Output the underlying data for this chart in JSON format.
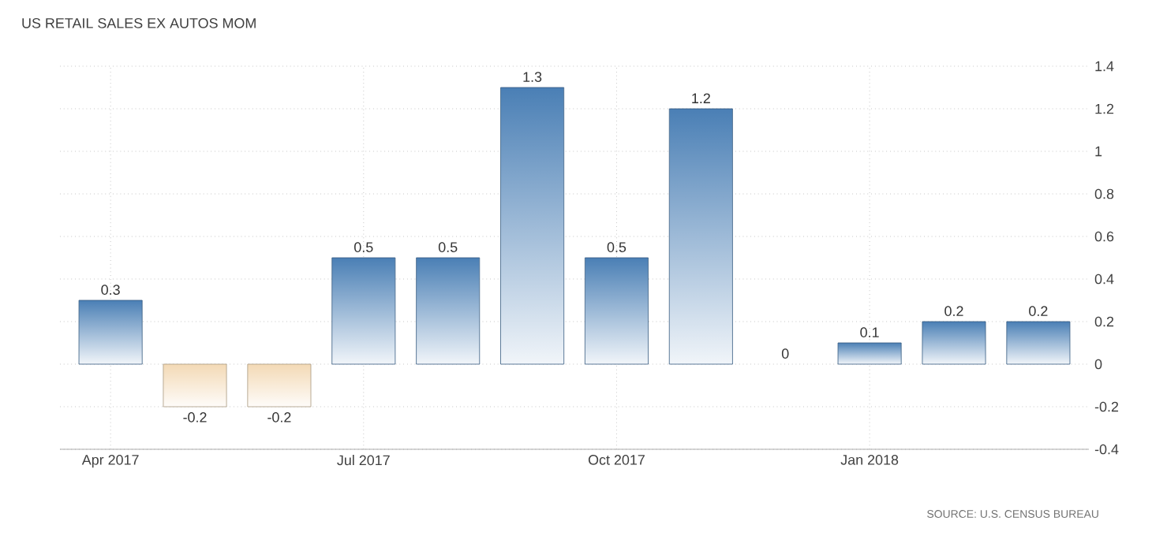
{
  "chart_data": {
    "type": "bar",
    "title": "US RETAIL SALES EX AUTOS MOM",
    "categories": [
      "Apr 2017",
      null,
      null,
      "Jul 2017",
      null,
      null,
      "Oct 2017",
      null,
      null,
      "Jan 2018",
      null,
      null
    ],
    "values": [
      0.3,
      -0.2,
      -0.2,
      0.5,
      0.5,
      1.3,
      0.5,
      1.2,
      0,
      0.1,
      0.2,
      0.2
    ],
    "colors": [
      "#4a7fb5",
      "#f3d9b5",
      "#f3d9b5",
      "#4a7fb5",
      "#4a7fb5",
      "#4a7fb5",
      "#4a7fb5",
      "#4a7fb5",
      "#4a7fb5",
      "#4a7fb5",
      "#4a7fb5",
      "#4a7fb5"
    ],
    "ylim": [
      -0.4,
      1.4
    ],
    "yticks": [
      -0.4,
      -0.2,
      0,
      0.2,
      0.4,
      0.6,
      0.8,
      1,
      1.2,
      1.4
    ],
    "grid": true,
    "data_labels": true,
    "annotations": [
      "SOURCE: U.S. CENSUS BUREAU"
    ]
  }
}
